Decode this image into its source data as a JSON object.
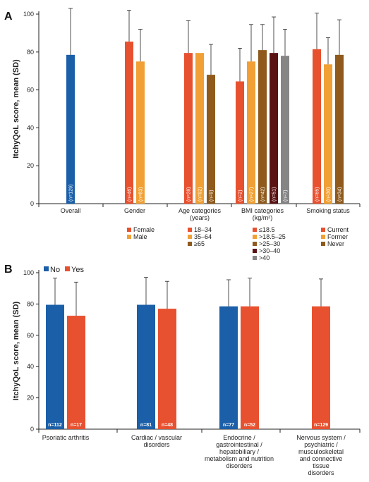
{
  "chart_data": [
    {
      "type": "bar",
      "panel_label": "A",
      "ylabel": "ItchyQoL score, mean (SD)",
      "ylim": [
        0,
        100
      ],
      "yticks": [
        0,
        20,
        40,
        60,
        80,
        100
      ],
      "groups": [
        {
          "label": "Overall",
          "bars": [
            {
              "value": 78.5,
              "sd": 24.5,
              "n": "n=129",
              "color": "#1b5fa8"
            }
          ]
        },
        {
          "label": "Gender",
          "bars": [
            {
              "value": 85.5,
              "sd": 16.5,
              "n": "n=46",
              "color": "#e8512f"
            },
            {
              "value": 75.0,
              "sd": 17.0,
              "n": "n=83",
              "color": "#f0a034"
            }
          ]
        },
        {
          "label": "Age  categories\n(years)",
          "bars": [
            {
              "value": 79.5,
              "sd": 17.0,
              "n": "n=28",
              "color": "#e8512f"
            },
            {
              "value": 79.5,
              "sd": 0,
              "n": "n=92",
              "color": "#f0a034"
            },
            {
              "value": 68.0,
              "sd": 16.0,
              "n": "n=9",
              "color": "#8f5a1c"
            }
          ]
        },
        {
          "label": "BMI  categories\n(kg/m²)",
          "bars": [
            {
              "value": 64.5,
              "sd": 17.5,
              "n": "n=2",
              "color": "#e8512f"
            },
            {
              "value": 75.0,
              "sd": 19.5,
              "n": "n=27",
              "color": "#f0a034"
            },
            {
              "value": 81.0,
              "sd": 13.5,
              "n": "n=42",
              "color": "#8f5a1c"
            },
            {
              "value": 79.5,
              "sd": 19.0,
              "n": "n=51",
              "color": "#5a1313"
            },
            {
              "value": 78.0,
              "sd": 14.0,
              "n": "n=7",
              "color": "#858585"
            }
          ]
        },
        {
          "label": "Smoking status",
          "bars": [
            {
              "value": 81.5,
              "sd": 19.0,
              "n": "n=65",
              "color": "#e8512f"
            },
            {
              "value": 73.5,
              "sd": 14.0,
              "n": "n=30",
              "color": "#f0a034"
            },
            {
              "value": 78.5,
              "sd": 18.5,
              "n": "n=34",
              "color": "#8f5a1c"
            }
          ]
        }
      ],
      "legends": [
        {
          "group": "Gender",
          "items": [
            {
              "label": "Female",
              "color": "#e8512f"
            },
            {
              "label": "Male",
              "color": "#f0a034"
            }
          ]
        },
        {
          "group": "Age",
          "items": [
            {
              "label": "18–34",
              "color": "#e8512f"
            },
            {
              "label": "35–64",
              "color": "#f0a034"
            },
            {
              "label": "≥65",
              "color": "#8f5a1c"
            }
          ]
        },
        {
          "group": "BMI",
          "items": [
            {
              "label": "≤18.5",
              "color": "#e8512f"
            },
            {
              "label": ">18.5–25",
              "color": "#f0a034"
            },
            {
              "label": ">25–30",
              "color": "#8f5a1c"
            },
            {
              "label": ">30–40",
              "color": "#5a1313"
            },
            {
              "label": ">40",
              "color": "#858585"
            }
          ]
        },
        {
          "group": "Smoking",
          "items": [
            {
              "label": "Current",
              "color": "#e8512f"
            },
            {
              "label": "Former",
              "color": "#f0a034"
            },
            {
              "label": "Never",
              "color": "#8f5a1c"
            }
          ]
        }
      ]
    },
    {
      "type": "bar",
      "panel_label": "B",
      "ylabel": "ItchyQoL score, mean (SD)",
      "ylim": [
        0,
        100
      ],
      "yticks": [
        0,
        20,
        40,
        60,
        80,
        100
      ],
      "legend": [
        {
          "label": "No",
          "color": "#1b5fa8"
        },
        {
          "label": "Yes",
          "color": "#e8512f"
        }
      ],
      "groups": [
        {
          "label": "Psoriatic arthritis",
          "bars": [
            {
              "value": 79.5,
              "sd": 17.0,
              "n": "n=112",
              "color": "#1b5fa8"
            },
            {
              "value": 72.5,
              "sd": 21.5,
              "n": "n=17",
              "color": "#e8512f"
            }
          ]
        },
        {
          "label": "Cardiac / vascular\ndisorders",
          "bars": [
            {
              "value": 79.5,
              "sd": 17.5,
              "n": "n=81",
              "color": "#1b5fa8"
            },
            {
              "value": 77.0,
              "sd": 17.5,
              "n": "n=48",
              "color": "#e8512f"
            }
          ]
        },
        {
          "label": "Endocrine /\ngastrointestinal /\nhepatobiliary /\nmetabolism and nutrition\ndisorders",
          "bars": [
            {
              "value": 78.5,
              "sd": 17.0,
              "n": "n=77",
              "color": "#1b5fa8"
            },
            {
              "value": 78.5,
              "sd": 18.0,
              "n": "n=52",
              "color": "#e8512f"
            }
          ]
        },
        {
          "label": "Nervous system /\npsychiatric /\nmusculoskeletal\nand connective\ntissue\ndisorders",
          "bars": [
            {
              "value": 78.5,
              "sd": 17.5,
              "n": "n=129",
              "color": "#e8512f"
            }
          ]
        }
      ]
    }
  ]
}
